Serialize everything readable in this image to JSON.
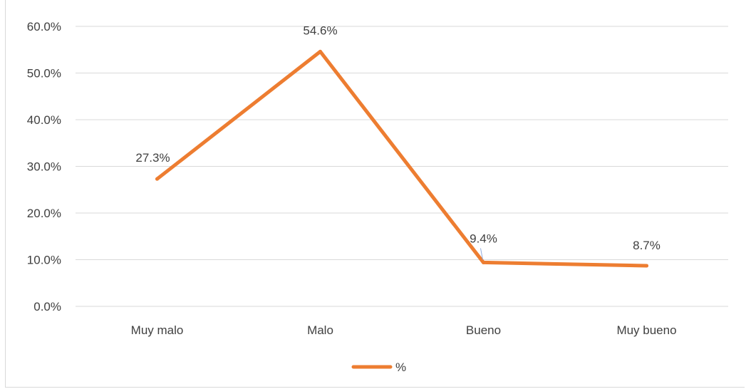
{
  "chart_data": {
    "type": "line",
    "categories": [
      "Muy malo",
      "Malo",
      "Bueno",
      "Muy bueno"
    ],
    "series": [
      {
        "name": "%",
        "values": [
          27.3,
          54.6,
          9.4,
          8.7
        ],
        "labels": [
          "27.3%",
          "54.6%",
          "9.4%",
          "8.7%"
        ],
        "color": "#ED7D31"
      }
    ],
    "ylim": [
      0,
      60
    ],
    "yticks": [
      "0.0%",
      "10.0%",
      "20.0%",
      "30.0%",
      "40.0%",
      "50.0%",
      "60.0%"
    ],
    "grid": true,
    "legend_position": "bottom",
    "gridline_color": "#d9d9d9",
    "text_color": "#404040"
  }
}
